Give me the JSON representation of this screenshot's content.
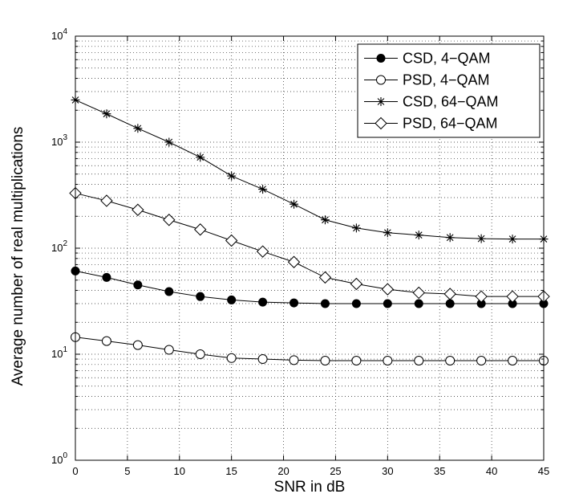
{
  "chart_data": {
    "type": "line",
    "title": "",
    "xlabel": "SNR in dB",
    "ylabel": "Average number of real multiplications",
    "xlim": [
      0,
      45
    ],
    "ylim": [
      1,
      10000
    ],
    "yscale": "log",
    "grid": true,
    "legend_position": "top-right",
    "x_ticks": [
      "0",
      "5",
      "10",
      "15",
      "20",
      "25",
      "30",
      "35",
      "40",
      "45"
    ],
    "y_ticks": [
      {
        "base": "10",
        "exp": "0"
      },
      {
        "base": "10",
        "exp": "1"
      },
      {
        "base": "10",
        "exp": "2"
      },
      {
        "base": "10",
        "exp": "3"
      },
      {
        "base": "10",
        "exp": "4"
      }
    ],
    "x": [
      0,
      3,
      6,
      9,
      12,
      15,
      18,
      21,
      24,
      27,
      30,
      33,
      36,
      39,
      42,
      45
    ],
    "series": [
      {
        "name": "CSD, 4−QAM",
        "marker": "filled-circle",
        "values": [
          61,
          53,
          45,
          39,
          35,
          32.5,
          31,
          30.5,
          30,
          30,
          30,
          30,
          30,
          30,
          30,
          30
        ]
      },
      {
        "name": "PSD, 4−QAM",
        "marker": "open-circle",
        "values": [
          14.5,
          13.3,
          12.2,
          11,
          10,
          9.2,
          9,
          8.8,
          8.7,
          8.7,
          8.7,
          8.7,
          8.7,
          8.7,
          8.7,
          8.7
        ]
      },
      {
        "name": "CSD, 64−QAM",
        "marker": "star",
        "values": [
          2500,
          1850,
          1350,
          1000,
          720,
          480,
          360,
          260,
          185,
          155,
          140,
          133,
          126,
          123,
          122,
          122
        ]
      },
      {
        "name": "PSD, 64−QAM",
        "marker": "diamond",
        "values": [
          330,
          280,
          230,
          185,
          150,
          118,
          93,
          74,
          53,
          46,
          41,
          38,
          37,
          35,
          35,
          35
        ]
      }
    ]
  }
}
